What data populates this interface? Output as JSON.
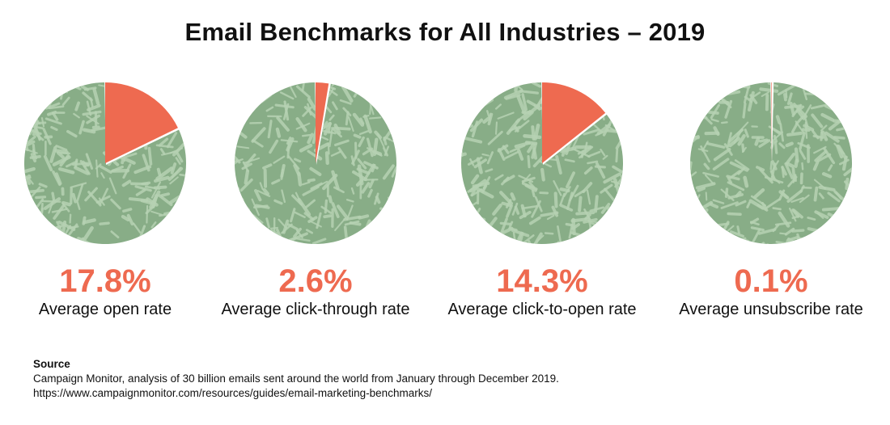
{
  "title": "Email Benchmarks for All Industries – 2019",
  "colors": {
    "highlight": "#ee6a50",
    "pie_base": "#88ad87",
    "pie_texture": "#b7d2b3",
    "text": "#111111"
  },
  "chart_data": {
    "type": "pie",
    "title": "Email Benchmarks for All Industries – 2019",
    "charts": [
      {
        "name": "open-rate",
        "value": 17.8,
        "value_label": "17.8%",
        "label": "Average open rate"
      },
      {
        "name": "click-through-rate",
        "value": 2.6,
        "value_label": "2.6%",
        "label": "Average click-through rate"
      },
      {
        "name": "click-to-open-rate",
        "value": 14.3,
        "value_label": "14.3%",
        "label": "Average click-to-open rate"
      },
      {
        "name": "unsubscribe-rate",
        "value": 0.1,
        "value_label": "0.1%",
        "label": "Average unsubscribe rate"
      }
    ]
  },
  "source": {
    "heading": "Source",
    "text": "Campaign Monitor, analysis of 30 billion emails sent around the world from January through December 2019.",
    "url": "https://www.campaignmonitor.com/resources/guides/email-marketing-benchmarks/"
  }
}
